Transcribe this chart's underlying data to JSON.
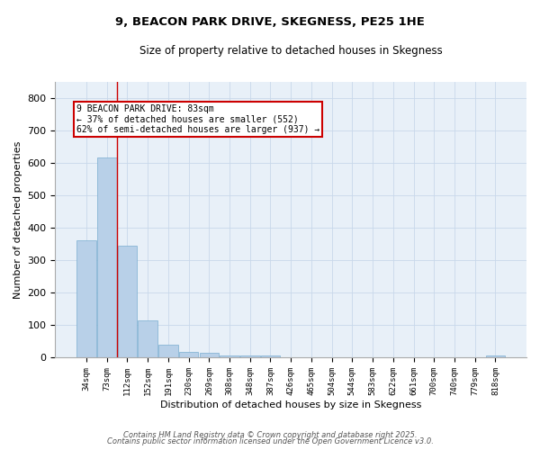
{
  "title": "9, BEACON PARK DRIVE, SKEGNESS, PE25 1HE",
  "subtitle": "Size of property relative to detached houses in Skegness",
  "xlabel": "Distribution of detached houses by size in Skegness",
  "ylabel": "Number of detached properties",
  "bar_labels": [
    "34sqm",
    "73sqm",
    "112sqm",
    "152sqm",
    "191sqm",
    "230sqm",
    "269sqm",
    "308sqm",
    "348sqm",
    "387sqm",
    "426sqm",
    "465sqm",
    "504sqm",
    "544sqm",
    "583sqm",
    "622sqm",
    "661sqm",
    "700sqm",
    "740sqm",
    "779sqm",
    "818sqm"
  ],
  "bar_values": [
    360,
    615,
    345,
    115,
    40,
    18,
    15,
    8,
    7,
    7,
    0,
    0,
    0,
    0,
    0,
    0,
    0,
    0,
    0,
    0,
    7
  ],
  "bar_color": "#b8d0e8",
  "bar_edgecolor": "#7aaed0",
  "bar_linewidth": 0.5,
  "redline_x": 1.48,
  "annotation_line1": "9 BEACON PARK DRIVE: 83sqm",
  "annotation_line2": "← 37% of detached houses are smaller (552)",
  "annotation_line3": "62% of semi-detached houses are larger (937) →",
  "annotation_bbox_color": "#cc0000",
  "ylim": [
    0,
    850
  ],
  "yticks": [
    0,
    100,
    200,
    300,
    400,
    500,
    600,
    700,
    800
  ],
  "grid_color": "#c8d8ea",
  "bg_color": "#e8f0f8",
  "footer1": "Contains HM Land Registry data © Crown copyright and database right 2025.",
  "footer2": "Contains public sector information licensed under the Open Government Licence v3.0."
}
